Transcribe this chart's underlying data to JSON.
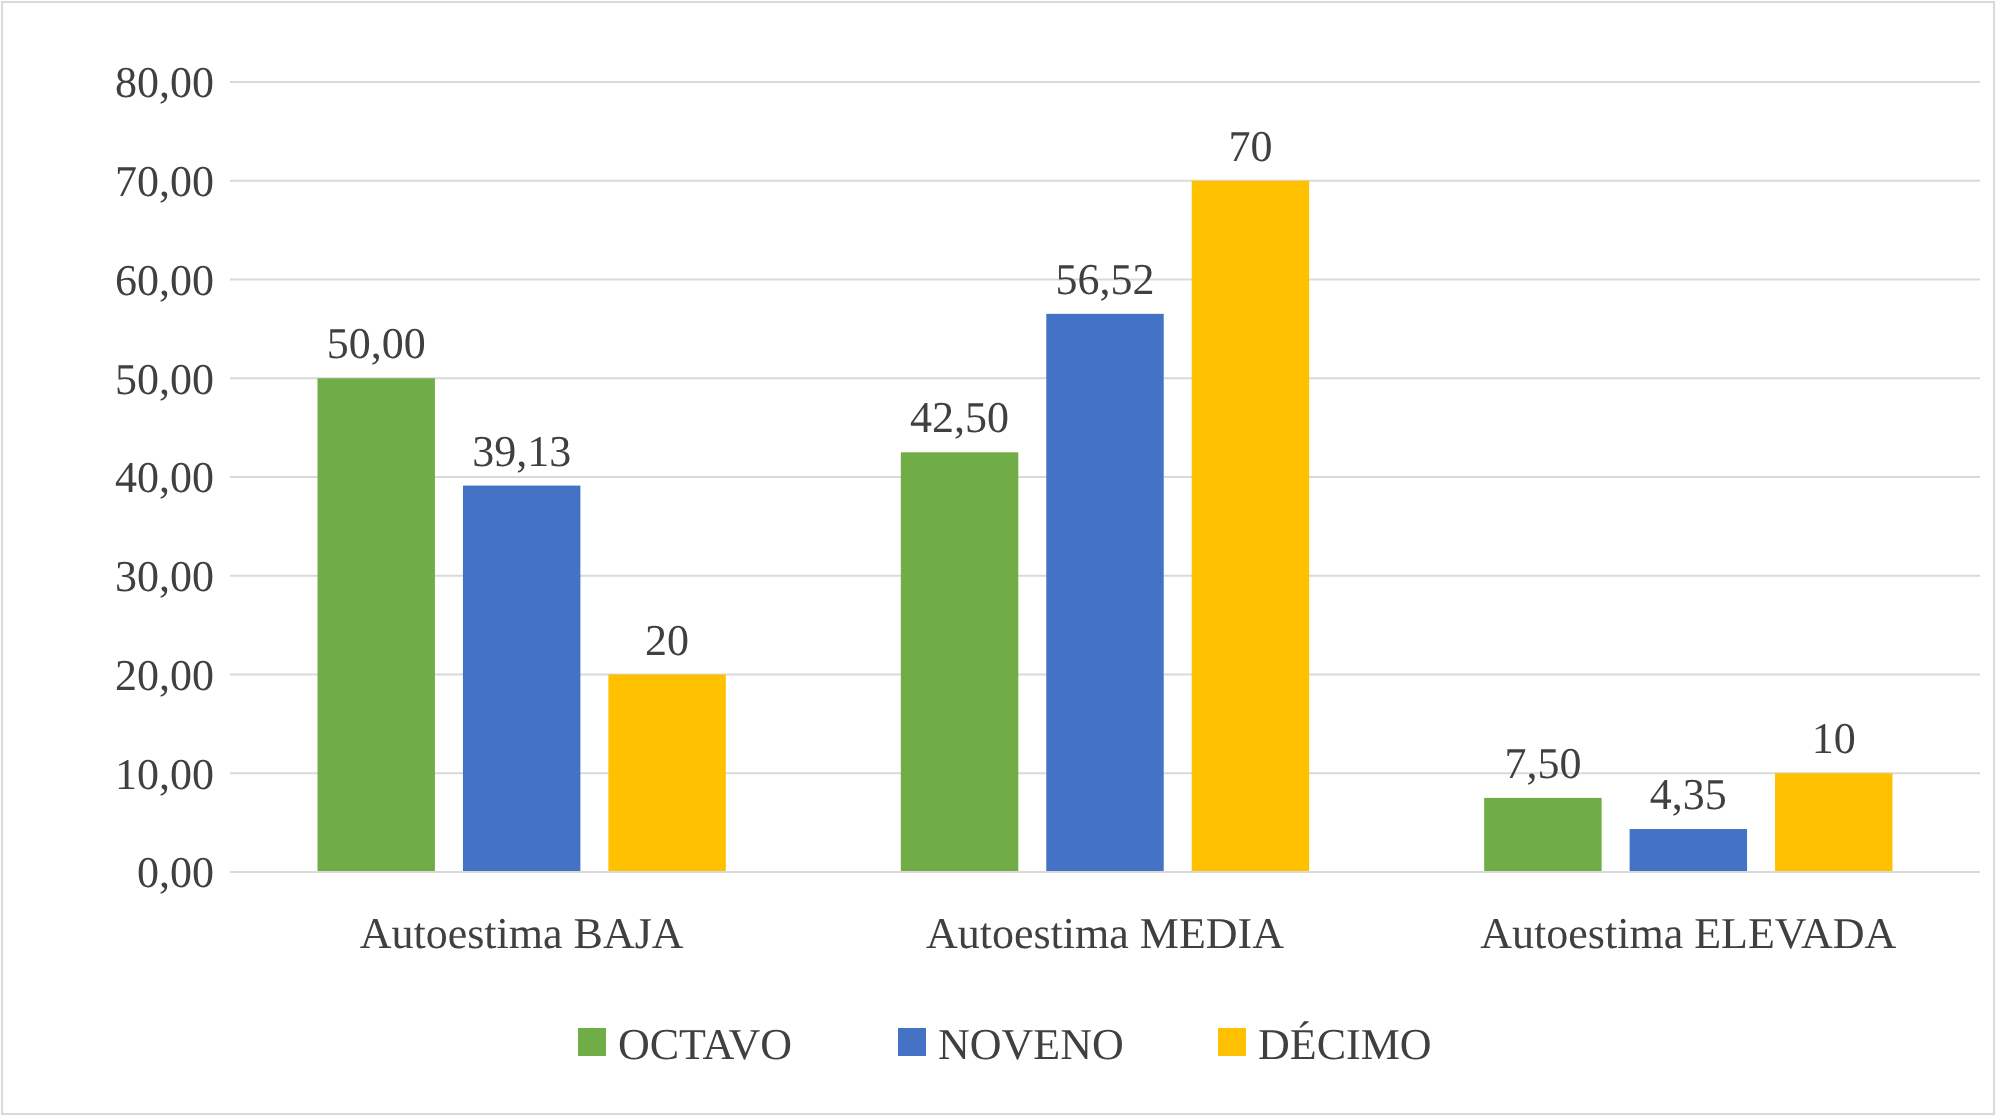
{
  "chart_data": {
    "type": "bar",
    "categories": [
      "Autoestima BAJA",
      "Autoestima MEDIA",
      "Autoestima ELEVADA"
    ],
    "series": [
      {
        "name": "OCTAVO",
        "color": "#70ad47",
        "values": [
          50,
          42.5,
          7.5
        ],
        "value_labels": [
          "50,00",
          "42,50",
          "7,50"
        ]
      },
      {
        "name": "NOVENO",
        "color": "#4472c4",
        "values": [
          39.13,
          56.52,
          4.35
        ],
        "value_labels": [
          "39,13",
          "56,52",
          "4,35"
        ]
      },
      {
        "name": "DÉCIMO",
        "color": "#ffc000",
        "values": [
          20,
          70,
          10
        ],
        "value_labels": [
          "20",
          "70",
          "10"
        ]
      }
    ],
    "ylim": [
      0,
      80
    ],
    "yticks": [
      {
        "value": 0,
        "label": "0,00"
      },
      {
        "value": 10,
        "label": "10,00"
      },
      {
        "value": 20,
        "label": "20,00"
      },
      {
        "value": 30,
        "label": "30,00"
      },
      {
        "value": 40,
        "label": "40,00"
      },
      {
        "value": 50,
        "label": "50,00"
      },
      {
        "value": 60,
        "label": "60,00"
      },
      {
        "value": 70,
        "label": "70,00"
      },
      {
        "value": 80,
        "label": "80,00"
      }
    ],
    "grid": "y",
    "legend": "bottom"
  }
}
